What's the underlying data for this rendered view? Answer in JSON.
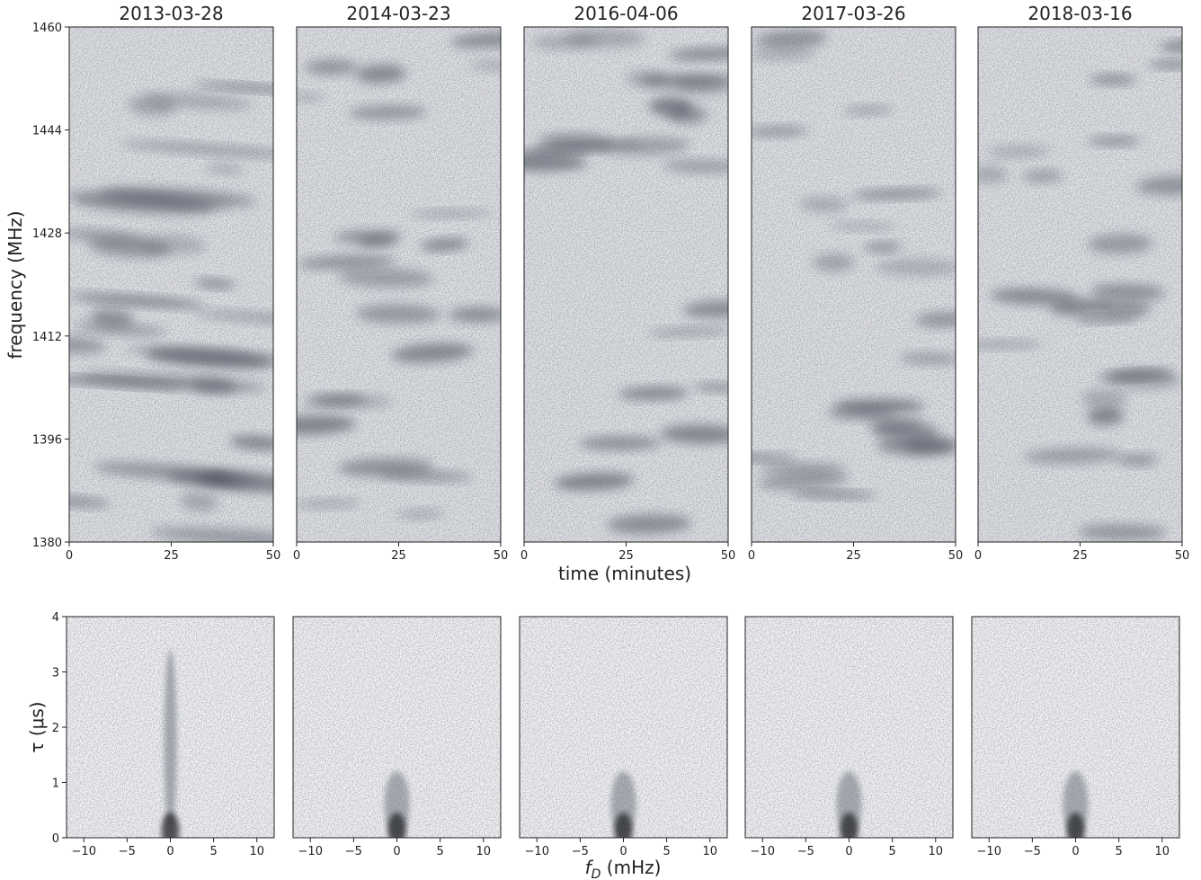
{
  "figure": {
    "top_ylabel": "frequency (MHz)",
    "top_xlabel": "time (minutes)",
    "bottom_ylabel": "τ (μs)",
    "bottom_xlabel": "fD (mHz)"
  },
  "chart_data": [
    {
      "type": "image",
      "title": "2013-03-28",
      "xlim": [
        0,
        50
      ],
      "ylim": [
        1380,
        1460
      ],
      "xticks": [
        0,
        25,
        50
      ],
      "yticks": [
        1380,
        1396,
        1412,
        1428,
        1444,
        1460
      ]
    },
    {
      "type": "image",
      "title": "2014-03-23",
      "xlim": [
        0,
        50
      ],
      "ylim": [
        1380,
        1460
      ],
      "xticks": [
        0,
        25,
        50
      ]
    },
    {
      "type": "image",
      "title": "2016-04-06",
      "xlim": [
        0,
        50
      ],
      "ylim": [
        1380,
        1460
      ],
      "xticks": [
        0,
        25,
        50
      ]
    },
    {
      "type": "image",
      "title": "2017-03-26",
      "xlim": [
        0,
        50
      ],
      "ylim": [
        1380,
        1460
      ],
      "xticks": [
        0,
        25,
        50
      ]
    },
    {
      "type": "image",
      "title": "2018-03-16",
      "xlim": [
        0,
        50
      ],
      "ylim": [
        1380,
        1460
      ],
      "xticks": [
        0,
        25,
        50
      ]
    },
    {
      "type": "image",
      "xlim": [
        -12,
        12
      ],
      "ylim": [
        0,
        4
      ],
      "xticks": [
        {
          "value": -10,
          "label": "−10"
        },
        {
          "value": -5,
          "label": "−5"
        },
        0,
        5,
        10
      ],
      "yticks": [
        0,
        1,
        2,
        3,
        4
      ]
    },
    {
      "type": "image",
      "xlim": [
        -12,
        12
      ],
      "ylim": [
        0,
        4
      ],
      "xticks": [
        {
          "value": -10,
          "label": "−10"
        },
        {
          "value": -5,
          "label": "−5"
        },
        0,
        5,
        10
      ]
    },
    {
      "type": "image",
      "xlim": [
        -12,
        12
      ],
      "ylim": [
        0,
        4
      ],
      "xticks": [
        {
          "value": -10,
          "label": "−10"
        },
        {
          "value": -5,
          "label": "−5"
        },
        0,
        5,
        10
      ]
    },
    {
      "type": "image",
      "xlim": [
        -12,
        12
      ],
      "ylim": [
        0,
        4
      ],
      "xticks": [
        {
          "value": -10,
          "label": "−10"
        },
        {
          "value": -5,
          "label": "−5"
        },
        0,
        5,
        10
      ]
    },
    {
      "type": "image",
      "xlim": [
        -12,
        12
      ],
      "ylim": [
        0,
        4
      ],
      "xticks": [
        {
          "value": -10,
          "label": "−10"
        },
        {
          "value": -5,
          "label": "−5"
        },
        0,
        5,
        10
      ]
    }
  ]
}
